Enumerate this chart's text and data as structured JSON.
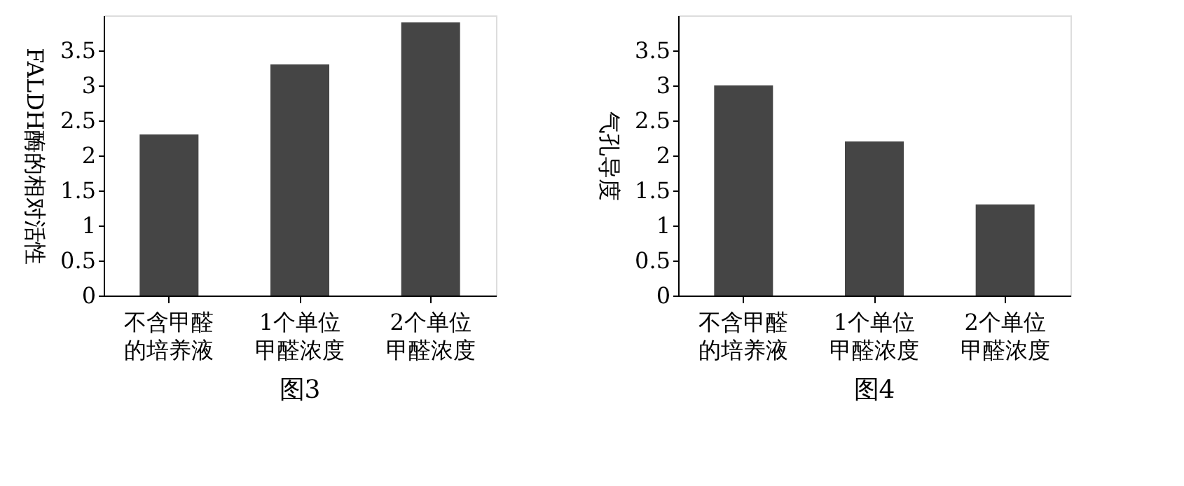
{
  "chart_data": [
    {
      "type": "bar",
      "title": "图3",
      "ylabel": "FALDH酶的相对活性",
      "categories": [
        "不含甲醛的培养液",
        "1个单位甲醛浓度",
        "2个单位甲醛浓度"
      ],
      "values": [
        2.3,
        3.3,
        3.9
      ],
      "color": "#454545",
      "ylim": [
        0,
        4
      ],
      "yticks": [
        0,
        0.5,
        1,
        1.5,
        2,
        2.5,
        3,
        3.5
      ],
      "grid": false
    },
    {
      "type": "bar",
      "title": "图4",
      "ylabel": "气孔导度",
      "categories": [
        "不含甲醛的培养液",
        "1个单位甲醛浓度",
        "2个单位甲醛浓度"
      ],
      "values": [
        3.0,
        2.2,
        1.3
      ],
      "color": "#454545",
      "ylim": [
        0,
        4
      ],
      "yticks": [
        0,
        0.5,
        1,
        1.5,
        2,
        2.5,
        3,
        3.5
      ],
      "grid": false
    }
  ]
}
